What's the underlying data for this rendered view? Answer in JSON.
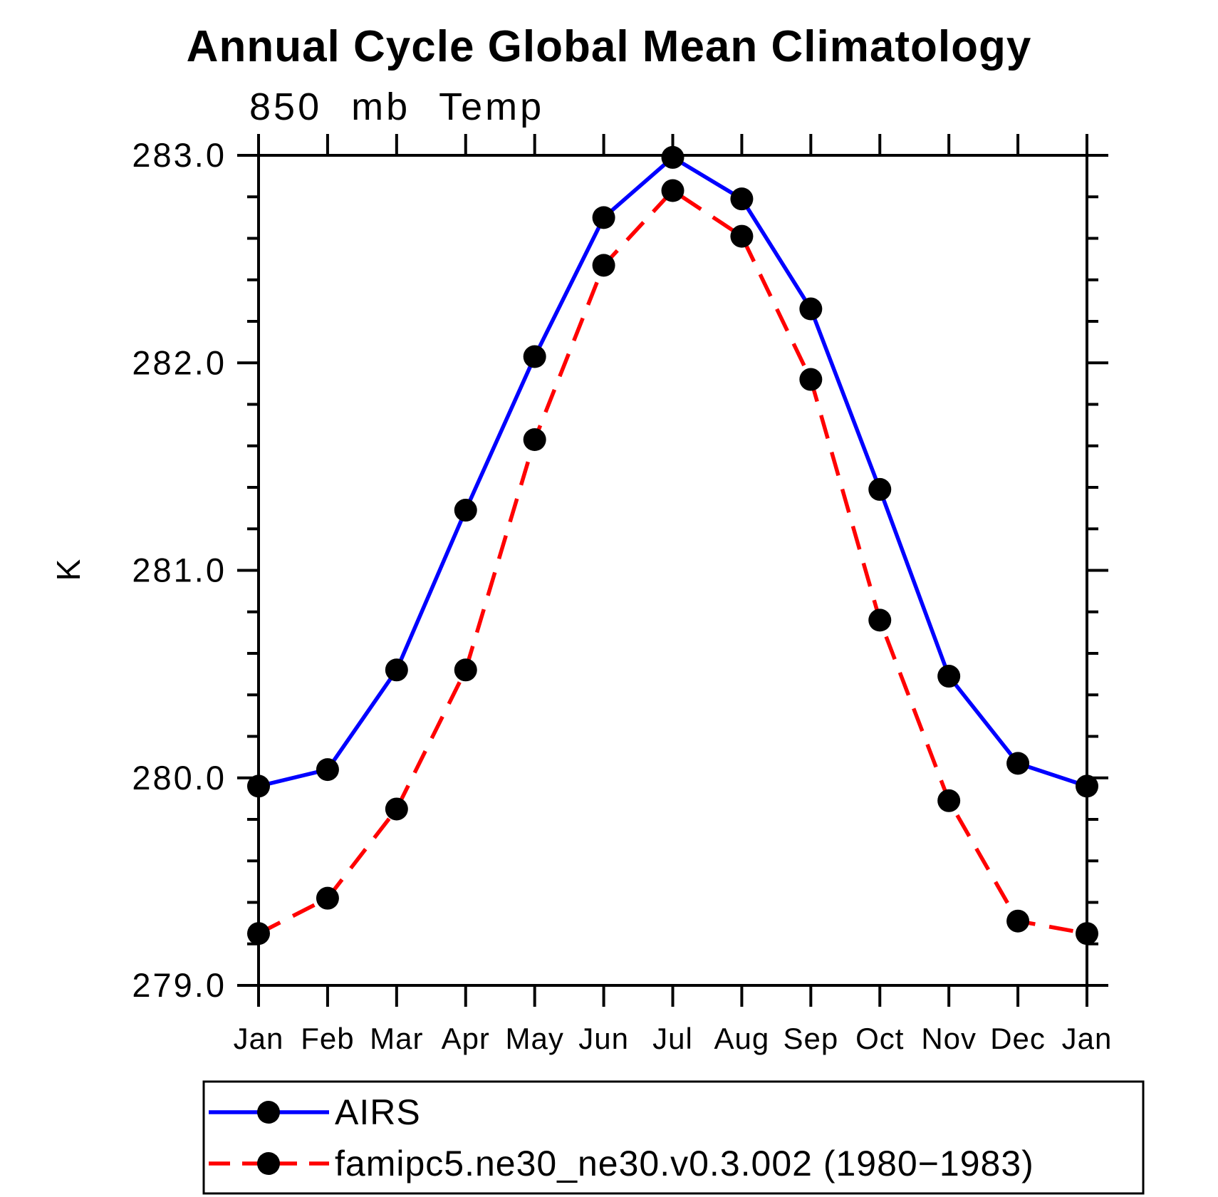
{
  "chart_data": {
    "type": "line",
    "title": "Annual Cycle Global Mean Climatology",
    "subtitle": "850 mb Temp",
    "ylabel": "K",
    "categories": [
      "Jan",
      "Feb",
      "Mar",
      "Apr",
      "May",
      "Jun",
      "Jul",
      "Aug",
      "Sep",
      "Oct",
      "Nov",
      "Dec",
      "Jan"
    ],
    "ylim": [
      279.0,
      283.0
    ],
    "ytick_major": [
      279.0,
      280.0,
      281.0,
      282.0,
      283.0
    ],
    "ytick_labels": [
      "279.0",
      "280.0",
      "281.0",
      "282.0",
      "283.0"
    ],
    "ytick_minor_step": 0.2,
    "grid": false,
    "legend_position": "bottom-left-box",
    "series": [
      {
        "name": "AIRS",
        "color": "#0000ff",
        "line_style": "solid",
        "marker": "circle",
        "marker_color": "#000000",
        "values": [
          279.96,
          280.04,
          280.52,
          281.29,
          282.03,
          282.7,
          282.99,
          282.79,
          282.26,
          281.39,
          280.49,
          280.07,
          279.96
        ]
      },
      {
        "name": "famipc5.ne30_ne30.v0.3.002 (1980−1983)",
        "color": "#ff0000",
        "line_style": "dashed",
        "marker": "circle",
        "marker_color": "#000000",
        "values": [
          279.25,
          279.42,
          279.85,
          280.52,
          281.63,
          282.47,
          282.83,
          282.61,
          281.92,
          280.76,
          279.89,
          279.31,
          279.25
        ]
      }
    ]
  },
  "colors": {
    "background": "#ffffff",
    "axis": "#000000",
    "text": "#000000",
    "series_blue": "#0000ff",
    "series_red": "#ff0000",
    "marker": "#000000"
  }
}
